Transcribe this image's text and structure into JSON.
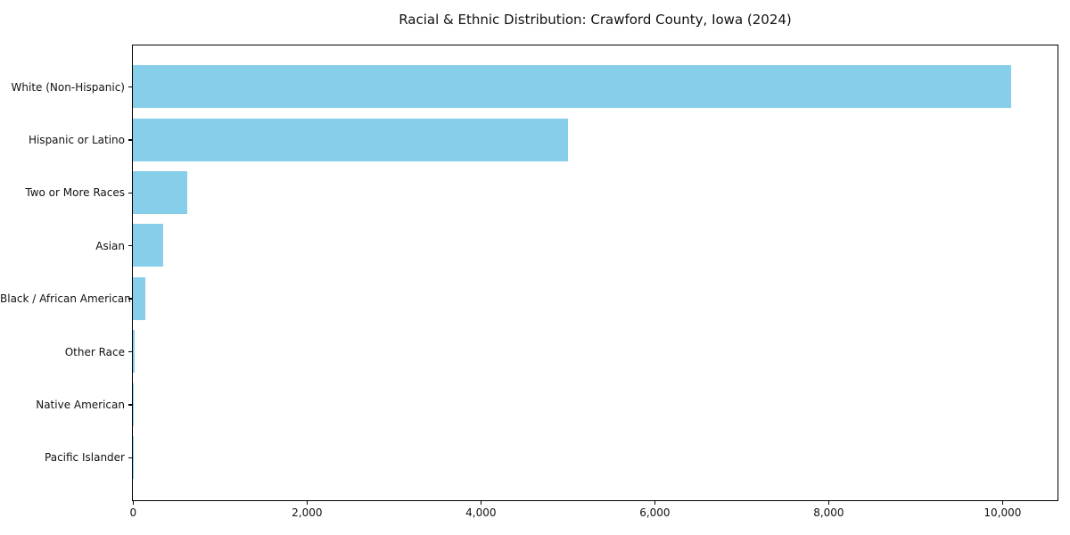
{
  "chart_data": {
    "type": "bar",
    "orientation": "horizontal",
    "title": "Racial & Ethnic Distribution: Crawford County, Iowa (2024)",
    "categories": [
      "White (Non-Hispanic)",
      "Hispanic or Latino",
      "Two or More Races",
      "Asian",
      "Black / African American",
      "Other Race",
      "Native American",
      "Pacific Islander"
    ],
    "values": [
      10100,
      5000,
      620,
      350,
      140,
      15,
      5,
      2
    ],
    "xlabel": "",
    "ylabel": "",
    "xlim": [
      0,
      10614
    ],
    "x_ticks": [
      0,
      2000,
      4000,
      6000,
      8000,
      10000
    ],
    "x_tick_labels": [
      "0",
      "2,000",
      "4,000",
      "6,000",
      "8,000",
      "10,000"
    ],
    "bar_color": "#87CEEB",
    "grid": false,
    "legend": null,
    "frame": true
  },
  "colors": {
    "bar": "#87CEEB",
    "text": "#111111",
    "axis": "#000000",
    "background": "#ffffff"
  }
}
